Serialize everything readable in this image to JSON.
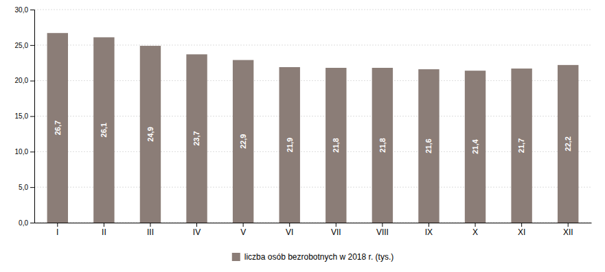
{
  "chart_data": {
    "type": "bar",
    "categories": [
      "I",
      "II",
      "III",
      "IV",
      "V",
      "VI",
      "VII",
      "VIII",
      "IX",
      "X",
      "XI",
      "XII"
    ],
    "series": [
      {
        "name": "liczba osób bezrobotnych w 2018 r. (tys.)",
        "color": "#8B7D77",
        "values": [
          26.7,
          26.1,
          24.9,
          23.7,
          22.9,
          21.9,
          21.8,
          21.8,
          21.6,
          21.4,
          21.7,
          22.2
        ],
        "value_labels": [
          "26,7",
          "26,1",
          "24,9",
          "23,7",
          "22,9",
          "21,9",
          "21,8",
          "21,8",
          "21,6",
          "21,4",
          "21,7",
          "22,2"
        ]
      }
    ],
    "ylim": [
      0,
      30
    ],
    "yticks": [
      {
        "value": 0.0,
        "label": "0,0"
      },
      {
        "value": 5.0,
        "label": "5,0"
      },
      {
        "value": 10.0,
        "label": "10,0"
      },
      {
        "value": 15.0,
        "label": "15,0"
      },
      {
        "value": 20.0,
        "label": "20,0"
      },
      {
        "value": 25.0,
        "label": "25,0"
      },
      {
        "value": 30.0,
        "label": "30,0"
      }
    ],
    "grid": true,
    "data_labels": true,
    "legend": "bottom"
  }
}
